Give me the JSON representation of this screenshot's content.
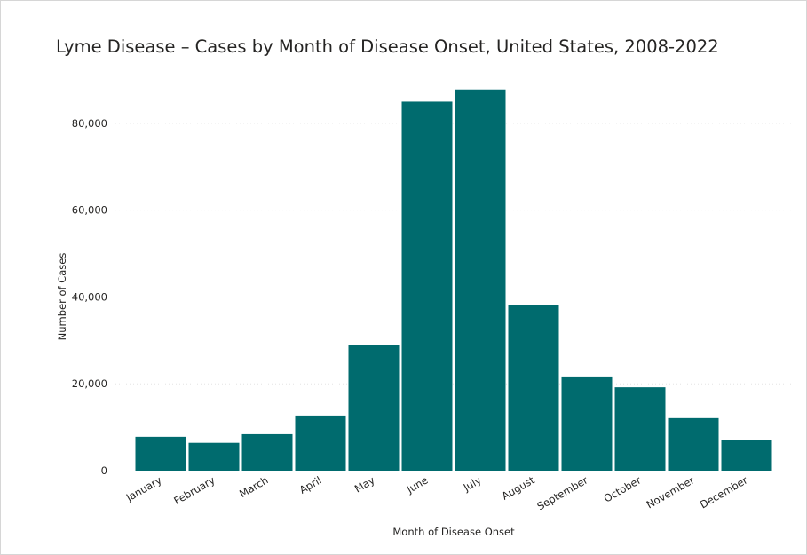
{
  "chart_data": {
    "type": "bar",
    "title": "Lyme Disease – Cases by Month of Disease Onset, United States, 2008-2022",
    "xlabel": "Month of Disease Onset",
    "ylabel": "Number of Cases",
    "categories": [
      "January",
      "February",
      "March",
      "April",
      "May",
      "June",
      "July",
      "August",
      "September",
      "October",
      "November",
      "December"
    ],
    "values": [
      7800,
      6400,
      8400,
      12700,
      29000,
      85000,
      87800,
      38200,
      21700,
      19200,
      12100,
      7100
    ],
    "ylim": [
      0,
      90000
    ],
    "yticks": [
      0,
      20000,
      40000,
      60000,
      80000
    ],
    "ytick_labels": [
      "0",
      "20,000",
      "40,000",
      "60,000",
      "80,000"
    ],
    "grid": true,
    "bar_color": "#006b6e",
    "grid_color": "#e3e3e3"
  }
}
